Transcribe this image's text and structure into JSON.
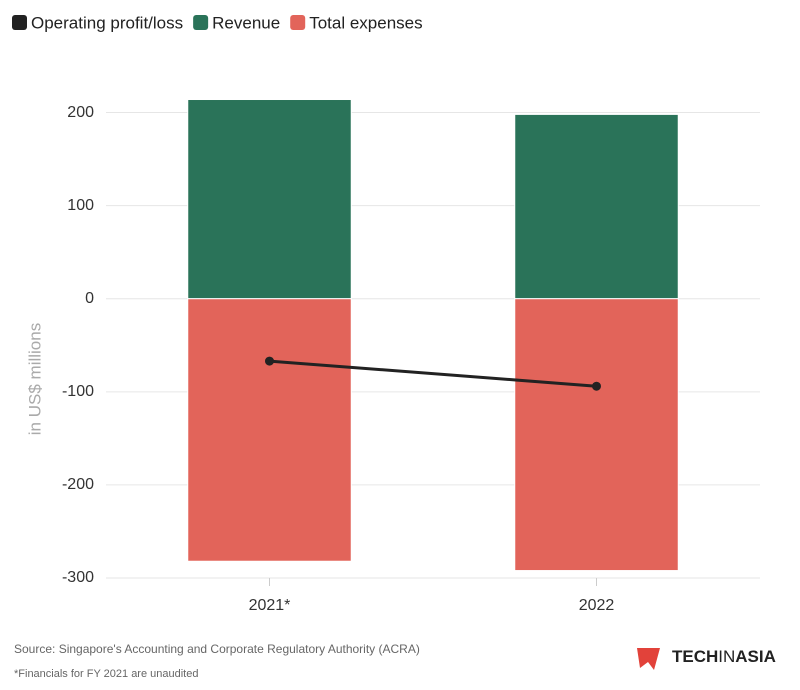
{
  "chart_data": {
    "type": "bar",
    "stacked": true,
    "categories": [
      "2021*",
      "2022"
    ],
    "series": [
      {
        "name": "Operating profit/loss",
        "type": "line",
        "color": "#222222",
        "values": [
          -67,
          -94
        ]
      },
      {
        "name": "Revenue",
        "type": "bar",
        "color": "#2a7359",
        "values": [
          214,
          198
        ]
      },
      {
        "name": "Total expenses",
        "type": "bar",
        "color": "#e2645a",
        "values": [
          -282,
          -292
        ]
      }
    ],
    "y_label": "in US$ millions",
    "ylim": [
      -300,
      250
    ],
    "yticks": [
      -300,
      -200,
      -100,
      0,
      100,
      200
    ],
    "grid": true,
    "legend": "top-left",
    "source": "Source: Singapore's Accounting and Corporate Regulatory Authority (ACRA)",
    "note": "*Financials for FY 2021 are unaudited",
    "brand": [
      "TECH",
      "IN",
      "ASIA"
    ]
  }
}
